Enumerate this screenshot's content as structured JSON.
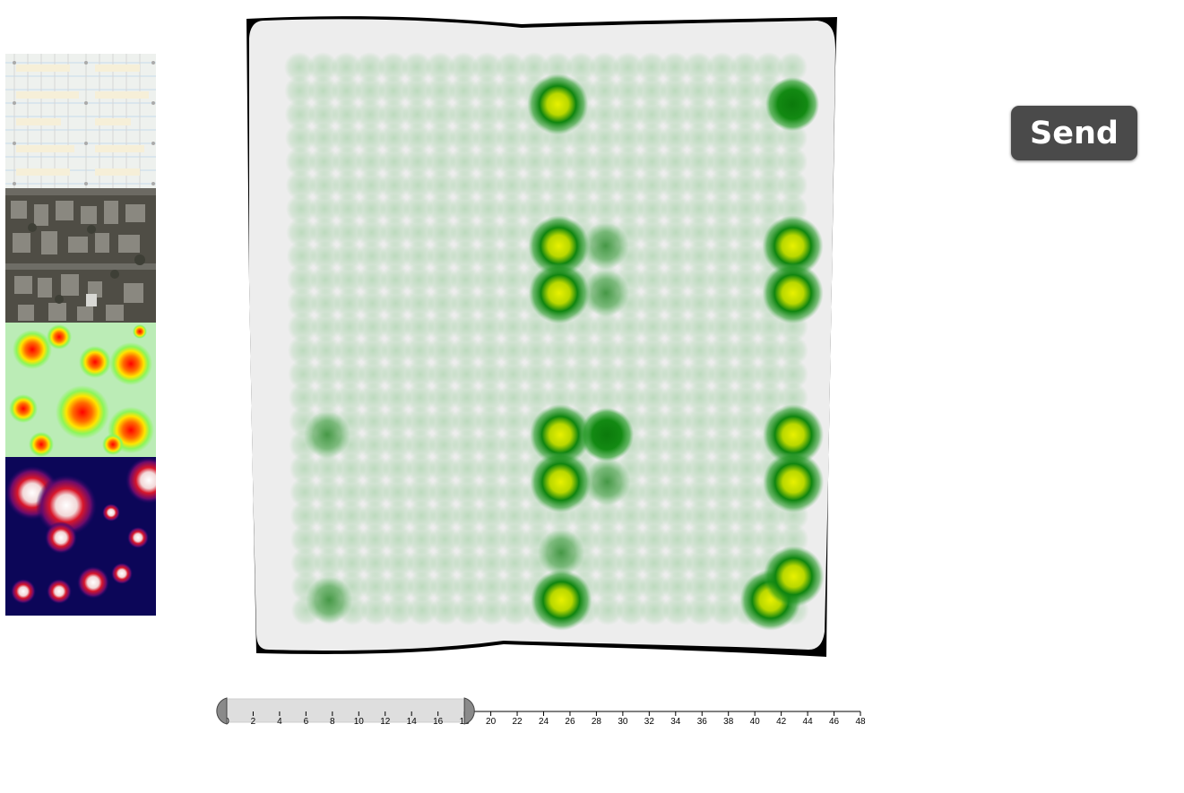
{
  "send_button": {
    "label": "Send"
  },
  "thumbnails": [
    {
      "name": "street-map-thumbnail"
    },
    {
      "name": "satellite-thumbnail"
    },
    {
      "name": "rainbow-heatmap-thumbnail"
    },
    {
      "name": "dark-heatmap-thumbnail"
    }
  ],
  "timeline_slider": {
    "min": 0,
    "max": 48,
    "step": 2,
    "range_start": 0,
    "range_end": 18,
    "ticks": [
      "0",
      "2",
      "4",
      "6",
      "8",
      "10",
      "12",
      "14",
      "16",
      "18",
      "20",
      "22",
      "24",
      "26",
      "28",
      "30",
      "32",
      "34",
      "36",
      "38",
      "40",
      "42",
      "44",
      "46",
      "48"
    ]
  },
  "heatmap": {
    "colors": {
      "background": "#ededed",
      "faint": "#4caf50",
      "strong": "#138a13",
      "hot": "#e8f000"
    },
    "grid_columns": 22,
    "grid_rows": 24,
    "hotspots": [
      {
        "col": 11,
        "row": 1,
        "intensity": "hot"
      },
      {
        "col": 21,
        "row": 1,
        "intensity": "strong"
      },
      {
        "col": 11,
        "row": 7,
        "intensity": "hot"
      },
      {
        "col": 13,
        "row": 7,
        "intensity": "medium"
      },
      {
        "col": 21,
        "row": 7,
        "intensity": "hot"
      },
      {
        "col": 11,
        "row": 9,
        "intensity": "hot"
      },
      {
        "col": 13,
        "row": 9,
        "intensity": "medium"
      },
      {
        "col": 21,
        "row": 9,
        "intensity": "hot"
      },
      {
        "col": 1,
        "row": 15,
        "intensity": "medium"
      },
      {
        "col": 11,
        "row": 15,
        "intensity": "hot"
      },
      {
        "col": 13,
        "row": 15,
        "intensity": "strong"
      },
      {
        "col": 21,
        "row": 15,
        "intensity": "hot"
      },
      {
        "col": 11,
        "row": 17,
        "intensity": "hot"
      },
      {
        "col": 13,
        "row": 17,
        "intensity": "medium"
      },
      {
        "col": 21,
        "row": 17,
        "intensity": "hot"
      },
      {
        "col": 11,
        "row": 20,
        "intensity": "medium"
      },
      {
        "col": 1,
        "row": 22,
        "intensity": "medium"
      },
      {
        "col": 11,
        "row": 22,
        "intensity": "hot"
      },
      {
        "col": 20,
        "row": 22,
        "intensity": "hot"
      },
      {
        "col": 21,
        "row": 21,
        "intensity": "hot"
      }
    ]
  }
}
